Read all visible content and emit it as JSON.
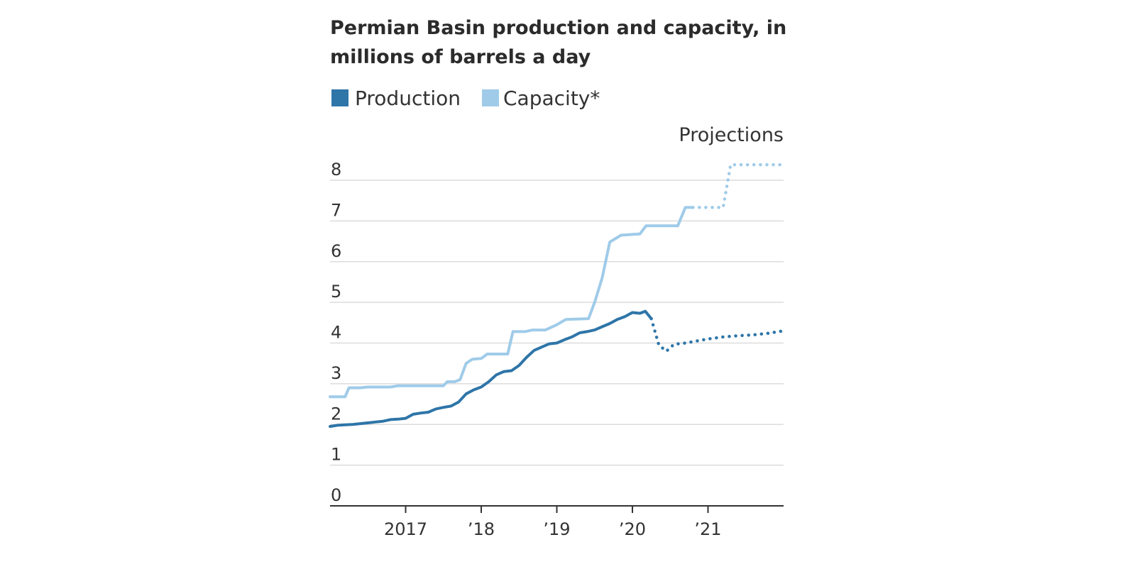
{
  "chart_data": {
    "type": "line",
    "title": "Permian Basin production and capacity, in millions of barrels a day",
    "title_lines": [
      "Permian Basin production and capacity, in",
      "millions of barrels a day"
    ],
    "annotation": "Projections",
    "x_tick_labels": [
      "2017",
      "’18",
      "’19",
      "’20",
      "’21"
    ],
    "x_ticks": [
      2017,
      2018,
      2019,
      2020,
      2021
    ],
    "xlim": [
      2016.0,
      2022.0
    ],
    "ylim": [
      0,
      8
    ],
    "y_ticks": [
      0,
      1,
      2,
      3,
      4,
      5,
      6,
      7,
      8
    ],
    "grid": true,
    "legend_placement": "top-left",
    "colors": {
      "production": "#2e75a8",
      "capacity": "#9fcbe9"
    },
    "series": [
      {
        "name": "Production",
        "color": "#2e75a8",
        "actual": [
          [
            2016.0,
            1.95
          ],
          [
            2016.1,
            1.98
          ],
          [
            2016.2,
            1.99
          ],
          [
            2016.3,
            2.0
          ],
          [
            2016.4,
            2.02
          ],
          [
            2016.5,
            2.04
          ],
          [
            2016.6,
            2.06
          ],
          [
            2016.7,
            2.08
          ],
          [
            2016.8,
            2.12
          ],
          [
            2016.9,
            2.13
          ],
          [
            2017.0,
            2.15
          ],
          [
            2017.1,
            2.25
          ],
          [
            2017.2,
            2.28
          ],
          [
            2017.3,
            2.3
          ],
          [
            2017.4,
            2.38
          ],
          [
            2017.5,
            2.42
          ],
          [
            2017.6,
            2.45
          ],
          [
            2017.7,
            2.55
          ],
          [
            2017.8,
            2.75
          ],
          [
            2017.9,
            2.85
          ],
          [
            2018.0,
            2.92
          ],
          [
            2018.1,
            3.05
          ],
          [
            2018.2,
            3.22
          ],
          [
            2018.3,
            3.3
          ],
          [
            2018.4,
            3.32
          ],
          [
            2018.5,
            3.45
          ],
          [
            2018.6,
            3.65
          ],
          [
            2018.7,
            3.82
          ],
          [
            2018.8,
            3.9
          ],
          [
            2018.9,
            3.98
          ],
          [
            2019.0,
            4.0
          ],
          [
            2019.1,
            4.08
          ],
          [
            2019.2,
            4.15
          ],
          [
            2019.3,
            4.25
          ],
          [
            2019.4,
            4.28
          ],
          [
            2019.5,
            4.32
          ],
          [
            2019.6,
            4.4
          ],
          [
            2019.7,
            4.48
          ],
          [
            2019.8,
            4.58
          ],
          [
            2019.9,
            4.65
          ],
          [
            2020.0,
            4.75
          ],
          [
            2020.1,
            4.73
          ],
          [
            2020.17,
            4.78
          ],
          [
            2020.25,
            4.6
          ]
        ],
        "projected": [
          [
            2020.25,
            4.6
          ],
          [
            2020.35,
            3.95
          ],
          [
            2020.45,
            3.8
          ],
          [
            2020.55,
            3.97
          ],
          [
            2020.7,
            4.0
          ],
          [
            2020.85,
            4.05
          ],
          [
            2021.0,
            4.1
          ],
          [
            2021.2,
            4.15
          ],
          [
            2021.4,
            4.18
          ],
          [
            2021.6,
            4.2
          ],
          [
            2021.8,
            4.24
          ],
          [
            2022.0,
            4.3
          ]
        ]
      },
      {
        "name": "Capacity*",
        "color": "#9fcbe9",
        "actual": [
          [
            2016.0,
            2.68
          ],
          [
            2016.2,
            2.68
          ],
          [
            2016.25,
            2.9
          ],
          [
            2016.4,
            2.9
          ],
          [
            2016.5,
            2.92
          ],
          [
            2016.8,
            2.92
          ],
          [
            2016.9,
            2.95
          ],
          [
            2017.5,
            2.95
          ],
          [
            2017.55,
            3.05
          ],
          [
            2017.65,
            3.05
          ],
          [
            2017.72,
            3.1
          ],
          [
            2017.8,
            3.5
          ],
          [
            2017.88,
            3.6
          ],
          [
            2018.0,
            3.62
          ],
          [
            2018.08,
            3.73
          ],
          [
            2018.35,
            3.73
          ],
          [
            2018.42,
            4.28
          ],
          [
            2018.58,
            4.28
          ],
          [
            2018.68,
            4.32
          ],
          [
            2018.85,
            4.32
          ],
          [
            2019.0,
            4.45
          ],
          [
            2019.12,
            4.58
          ],
          [
            2019.42,
            4.6
          ],
          [
            2019.5,
            5.0
          ],
          [
            2019.6,
            5.6
          ],
          [
            2019.7,
            6.48
          ],
          [
            2019.85,
            6.65
          ],
          [
            2020.1,
            6.68
          ],
          [
            2020.18,
            6.88
          ],
          [
            2020.6,
            6.88
          ],
          [
            2020.7,
            7.33
          ],
          [
            2020.8,
            7.33
          ]
        ],
        "projected": [
          [
            2020.8,
            7.33
          ],
          [
            2021.2,
            7.33
          ],
          [
            2021.3,
            8.38
          ],
          [
            2022.0,
            8.38
          ]
        ]
      }
    ]
  }
}
